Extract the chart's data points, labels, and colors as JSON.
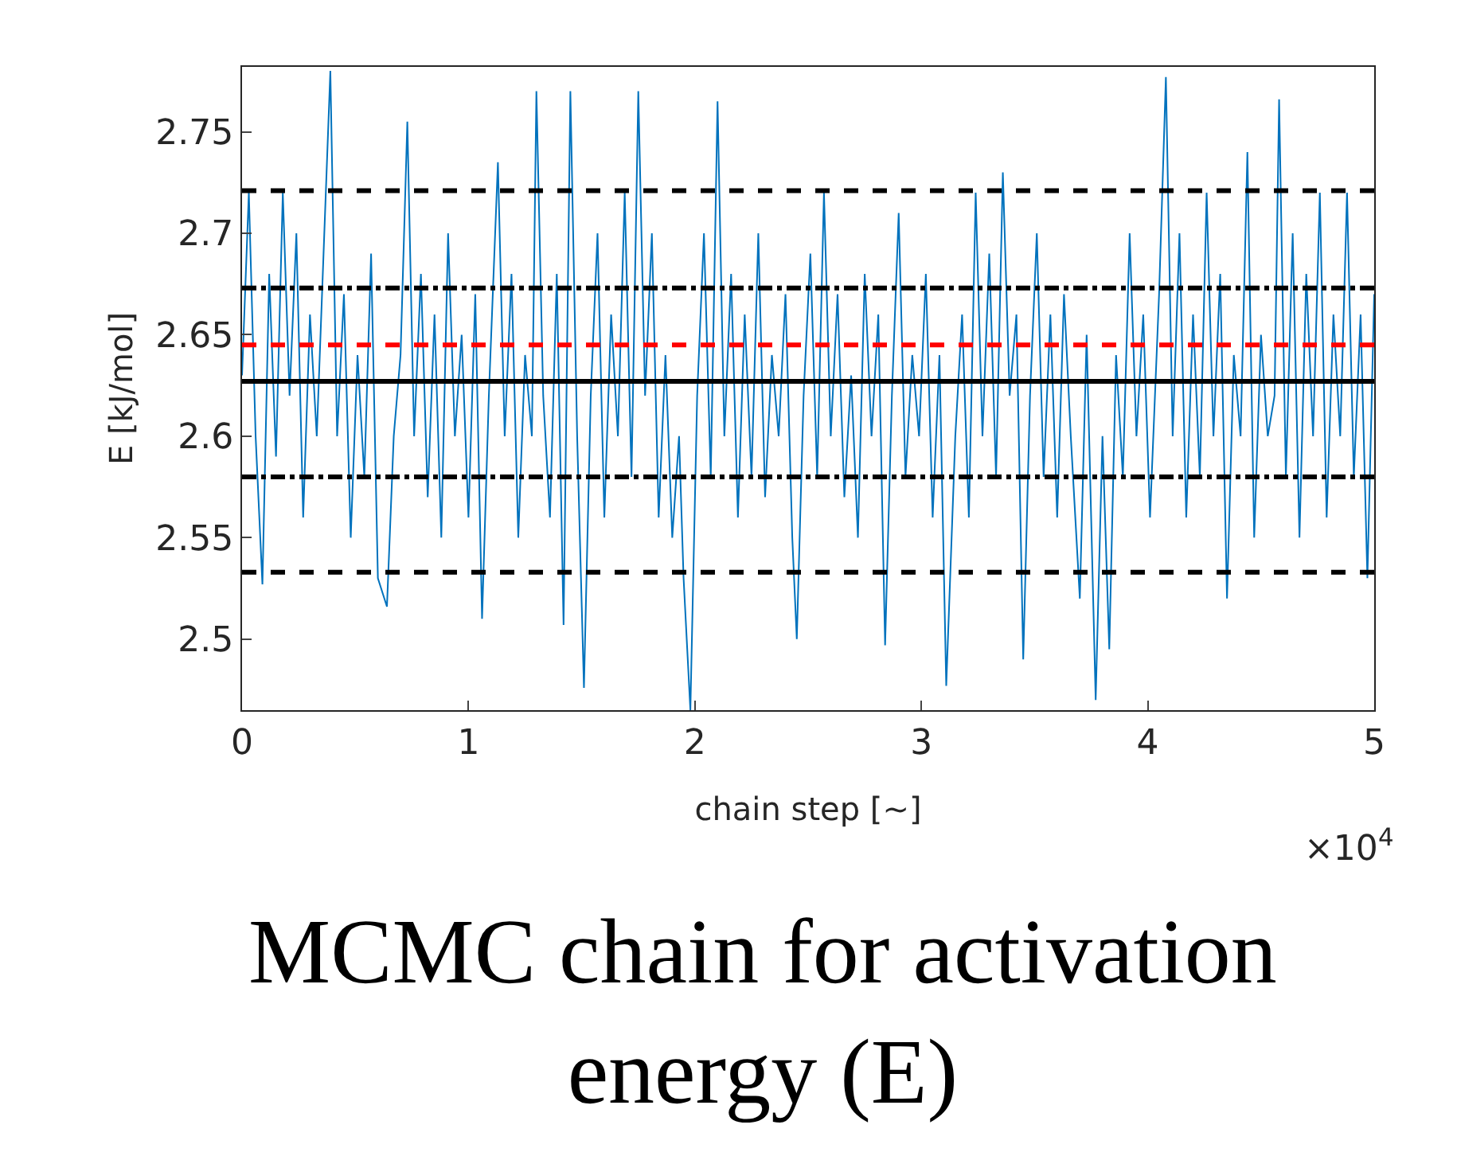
{
  "chart_data": {
    "type": "line",
    "title": "MCMC chain for activation energy (E)",
    "xlabel": "chain step [~]",
    "ylabel": "E [kJ/mol]",
    "annotations": [
      "×10$^{4}$"
    ],
    "xlim": [
      0,
      5
    ],
    "ylim": [
      2.465,
      2.782
    ],
    "xticks": [
      0,
      1,
      2,
      3,
      4,
      5
    ],
    "yticks": [
      2.5,
      2.55,
      2.6,
      2.65,
      2.7,
      2.75
    ],
    "legend": false,
    "marker": "none",
    "line_style": "solid",
    "series": [
      {
        "color": "#0072bd",
        "x": [
          0,
          0.03,
          0.06,
          0.09,
          0.12,
          0.15,
          0.18,
          0.21,
          0.24,
          0.27,
          0.3,
          0.33,
          0.36,
          0.39,
          0.42,
          0.45,
          0.48,
          0.51,
          0.54,
          0.57,
          0.6,
          0.64,
          0.67,
          0.7,
          0.73,
          0.76,
          0.79,
          0.82,
          0.85,
          0.88,
          0.91,
          0.94,
          0.97,
          1,
          1.03,
          1.06,
          1.09,
          1.13,
          1.16,
          1.19,
          1.22,
          1.25,
          1.28,
          1.3,
          1.33,
          1.36,
          1.39,
          1.42,
          1.45,
          1.48,
          1.51,
          1.54,
          1.57,
          1.6,
          1.63,
          1.66,
          1.69,
          1.72,
          1.75,
          1.78,
          1.81,
          1.84,
          1.87,
          1.9,
          1.93,
          1.95,
          1.98,
          2.01,
          2.04,
          2.07,
          2.1,
          2.13,
          2.16,
          2.19,
          2.22,
          2.25,
          2.28,
          2.31,
          2.34,
          2.37,
          2.4,
          2.43,
          2.45,
          2.48,
          2.51,
          2.54,
          2.57,
          2.6,
          2.63,
          2.66,
          2.69,
          2.72,
          2.75,
          2.78,
          2.81,
          2.84,
          2.87,
          2.9,
          2.93,
          2.96,
          2.99,
          3.02,
          3.05,
          3.08,
          3.11,
          3.15,
          3.18,
          3.21,
          3.24,
          3.27,
          3.3,
          3.33,
          3.36,
          3.39,
          3.42,
          3.45,
          3.48,
          3.51,
          3.54,
          3.57,
          3.6,
          3.63,
          3.66,
          3.7,
          3.73,
          3.77,
          3.8,
          3.83,
          3.86,
          3.89,
          3.92,
          3.95,
          3.98,
          4.01,
          4.05,
          4.08,
          4.11,
          4.14,
          4.17,
          4.2,
          4.23,
          4.26,
          4.29,
          4.32,
          4.35,
          4.38,
          4.41,
          4.44,
          4.47,
          4.5,
          4.53,
          4.56,
          4.58,
          4.61,
          4.64,
          4.67,
          4.7,
          4.73,
          4.76,
          4.79,
          4.82,
          4.85,
          4.88,
          4.91,
          4.94,
          4.97,
          5
        ],
        "values": [
          2.63,
          2.72,
          2.6,
          2.527,
          2.68,
          2.59,
          2.72,
          2.62,
          2.7,
          2.56,
          2.66,
          2.6,
          2.69,
          2.78,
          2.6,
          2.67,
          2.55,
          2.64,
          2.58,
          2.69,
          2.53,
          2.516,
          2.6,
          2.64,
          2.755,
          2.6,
          2.68,
          2.57,
          2.66,
          2.55,
          2.7,
          2.6,
          2.65,
          2.56,
          2.67,
          2.51,
          2.62,
          2.735,
          2.6,
          2.68,
          2.55,
          2.64,
          2.6,
          2.77,
          2.62,
          2.56,
          2.68,
          2.507,
          2.77,
          2.6,
          2.476,
          2.62,
          2.7,
          2.56,
          2.66,
          2.6,
          2.72,
          2.58,
          2.77,
          2.62,
          2.7,
          2.56,
          2.64,
          2.55,
          2.6,
          2.53,
          2.465,
          2.62,
          2.7,
          2.58,
          2.765,
          2.6,
          2.68,
          2.56,
          2.66,
          2.58,
          2.7,
          2.57,
          2.64,
          2.6,
          2.67,
          2.55,
          2.5,
          2.62,
          2.69,
          2.58,
          2.72,
          2.6,
          2.67,
          2.57,
          2.63,
          2.55,
          2.68,
          2.6,
          2.66,
          2.497,
          2.62,
          2.71,
          2.58,
          2.64,
          2.6,
          2.68,
          2.56,
          2.64,
          2.477,
          2.6,
          2.66,
          2.56,
          2.72,
          2.6,
          2.69,
          2.58,
          2.73,
          2.62,
          2.66,
          2.49,
          2.62,
          2.7,
          2.58,
          2.66,
          2.56,
          2.67,
          2.6,
          2.52,
          2.65,
          2.47,
          2.6,
          2.495,
          2.64,
          2.58,
          2.7,
          2.6,
          2.66,
          2.56,
          2.67,
          2.777,
          2.6,
          2.7,
          2.56,
          2.66,
          2.58,
          2.72,
          2.6,
          2.68,
          2.52,
          2.64,
          2.6,
          2.74,
          2.55,
          2.65,
          2.6,
          2.62,
          2.766,
          2.58,
          2.7,
          2.55,
          2.68,
          2.6,
          2.72,
          2.56,
          2.66,
          2.6,
          2.72,
          2.58,
          2.66,
          2.53,
          2.67
        ]
      }
    ],
    "ref_lines": [
      {
        "axis": "y",
        "value": 2.721,
        "color": "#000000",
        "line_style": "dashed"
      },
      {
        "axis": "y",
        "value": 2.673,
        "color": "#000000",
        "line_style": "dashdot"
      },
      {
        "axis": "y",
        "value": 2.645,
        "color": "#ff0000",
        "line_style": "dashed"
      },
      {
        "axis": "y",
        "value": 2.627,
        "color": "#000000",
        "line_style": "solid"
      },
      {
        "axis": "y",
        "value": 2.58,
        "color": "#000000",
        "line_style": "dashdot"
      },
      {
        "axis": "y",
        "value": 2.533,
        "color": "#000000",
        "line_style": "dashed"
      }
    ]
  }
}
